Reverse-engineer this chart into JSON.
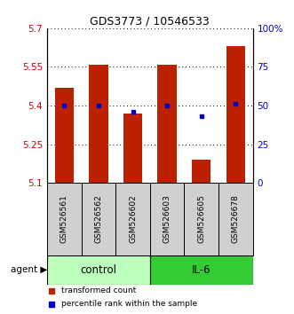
{
  "title": "GDS3773 / 10546533",
  "samples": [
    "GSM526561",
    "GSM526562",
    "GSM526602",
    "GSM526603",
    "GSM526605",
    "GSM526678"
  ],
  "bar_values": [
    5.47,
    5.56,
    5.37,
    5.56,
    5.19,
    5.63
  ],
  "percentile_values": [
    50,
    50,
    46,
    50,
    43,
    51
  ],
  "y_min": 5.1,
  "y_max": 5.7,
  "y_ticks": [
    5.1,
    5.25,
    5.4,
    5.55,
    5.7
  ],
  "y_tick_labels": [
    "5.1",
    "5.25",
    "5.4",
    "5.55",
    "5.7"
  ],
  "right_y_ticks": [
    0,
    25,
    50,
    75,
    100
  ],
  "right_y_labels": [
    "0",
    "25",
    "50",
    "75",
    "100%"
  ],
  "bar_color": "#bb2000",
  "dot_color": "#0000cc",
  "control_color": "#bbffbb",
  "il6_color": "#33cc33",
  "label_color_left": "#cc0000",
  "label_color_right": "#0000cc",
  "group_label_control": "control",
  "group_label_il6": "IL-6",
  "legend_bar_label": "transformed count",
  "legend_dot_label": "percentile rank within the sample",
  "agent_label": "agent"
}
